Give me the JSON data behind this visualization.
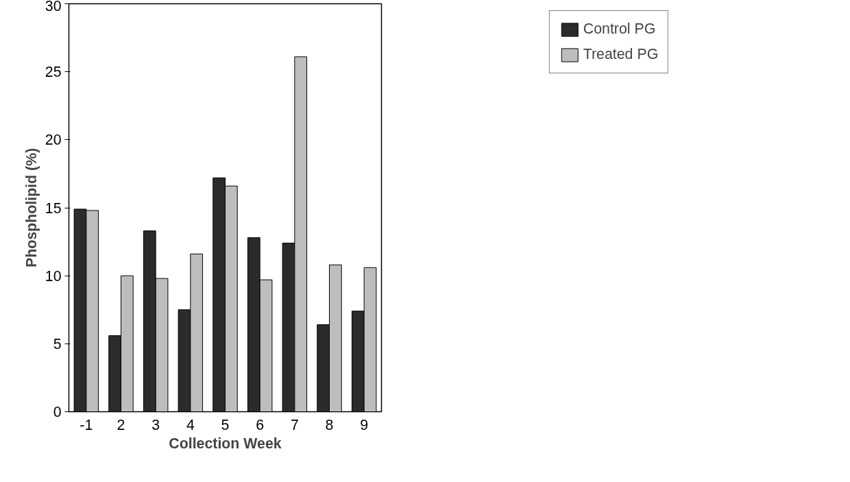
{
  "chart_data": {
    "type": "bar",
    "xlabel": "Collection Week",
    "ylabel": "Phospholipid (%)",
    "categories": [
      "-1",
      "2",
      "3",
      "4",
      "5",
      "6",
      "7",
      "8",
      "9"
    ],
    "series": [
      {
        "name": "Control PG",
        "color": "#2b2b2b",
        "values": [
          14.9,
          5.6,
          13.3,
          7.5,
          17.2,
          12.8,
          12.4,
          6.4,
          7.4
        ]
      },
      {
        "name": "Treated PG",
        "color": "#bdbdbd",
        "values": [
          14.8,
          10.0,
          9.8,
          11.6,
          16.6,
          9.7,
          26.1,
          10.8,
          10.6
        ]
      }
    ],
    "ylim": [
      0,
      30
    ],
    "yticks": [
      0,
      5,
      10,
      15,
      20,
      25,
      30
    ],
    "grid": false,
    "legend": "top right"
  }
}
